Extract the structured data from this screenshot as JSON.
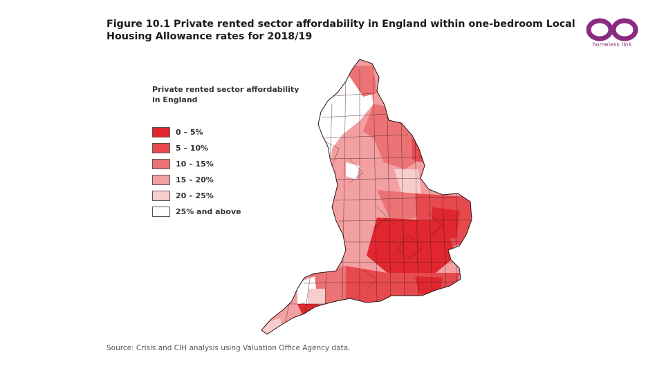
{
  "title": "Figure 10.1 Private rented sector affordability in England within one-bedroom Local Housing Allowance rates for 2018/19",
  "logo": {
    "text": "homeless link",
    "color": "#8a2a82"
  },
  "legend": {
    "title_line1": "Private rented sector affordability",
    "title_line2": "in England",
    "items": [
      {
        "label": "0 – 5%",
        "color": "#e0262e"
      },
      {
        "label": "5 – 10%",
        "color": "#e64a4f"
      },
      {
        "label": "10 – 15%",
        "color": "#ec7375"
      },
      {
        "label": "15 – 20%",
        "color": "#f2a0a2"
      },
      {
        "label": "20 – 25%",
        "color": "#f8cdce"
      },
      {
        "label": "25% and above",
        "color": "#ffffff"
      }
    ]
  },
  "source": "Source: Crisis and CIH analysis using Valuation Office Agency data."
}
